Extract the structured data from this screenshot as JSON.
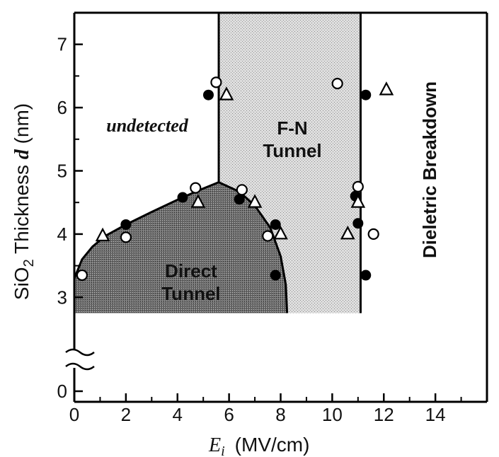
{
  "chart_data": {
    "type": "scatter",
    "title": "",
    "xlabel": "(MV/cm)",
    "xlabel_symbol": "E",
    "xlabel_subscript": "i",
    "ylabel_prefix": "SiO",
    "ylabel_subscript": "2",
    "ylabel_mid": " Thickness ",
    "ylabel_symbol": "d",
    "ylabel_suffix": " (nm)",
    "xlim": [
      0,
      16
    ],
    "ylim_display": [
      2.5,
      7.5
    ],
    "y_axis_break": true,
    "x_ticks": [
      "0",
      "2",
      "4",
      "6",
      "8",
      "10",
      "12",
      "14"
    ],
    "x_tick_values": [
      0,
      2,
      4,
      6,
      8,
      10,
      12,
      14
    ],
    "y_ticks": [
      "0",
      "3",
      "4",
      "5",
      "6",
      "7"
    ],
    "y_tick_values": [
      0,
      3,
      4,
      5,
      6,
      7
    ],
    "grid": false,
    "regions": [
      {
        "label": "undetected",
        "style": "italic"
      },
      {
        "label_lines": [
          "Direct",
          "Tunnel"
        ],
        "fill": "dark-stipple"
      },
      {
        "label_lines": [
          "F-N",
          "Tunnel"
        ],
        "fill": "light-stipple"
      },
      {
        "label": "Dieletric Breakdown",
        "rotated": true
      }
    ],
    "boundaries": {
      "fn_left_x": 5.6,
      "fn_right_x": 11.1,
      "fn_top_y": 7.5,
      "region_bottom_y": 2.75,
      "direct_tunnel_curve": [
        [
          0.0,
          3.3
        ],
        [
          0.3,
          3.6
        ],
        [
          0.7,
          3.8
        ],
        [
          1.2,
          3.97
        ],
        [
          2.0,
          4.15
        ],
        [
          3.0,
          4.35
        ],
        [
          4.2,
          4.58
        ],
        [
          5.0,
          4.72
        ],
        [
          5.6,
          4.82
        ],
        [
          6.4,
          4.67
        ],
        [
          7.0,
          4.45
        ],
        [
          7.6,
          4.1
        ],
        [
          8.0,
          3.65
        ],
        [
          8.2,
          3.2
        ],
        [
          8.25,
          2.75
        ]
      ]
    },
    "series": [
      {
        "marker": "filled-circle",
        "points": [
          [
            2.0,
            4.15
          ],
          [
            4.2,
            4.58
          ],
          [
            5.2,
            6.2
          ],
          [
            6.4,
            4.55
          ],
          [
            7.8,
            4.15
          ],
          [
            7.8,
            3.35
          ],
          [
            10.9,
            4.6
          ],
          [
            11.0,
            4.17
          ],
          [
            11.3,
            6.2
          ],
          [
            11.3,
            3.35
          ]
        ]
      },
      {
        "marker": "open-circle",
        "points": [
          [
            0.3,
            3.35
          ],
          [
            2.0,
            3.95
          ],
          [
            4.7,
            4.73
          ],
          [
            5.5,
            6.4
          ],
          [
            6.5,
            4.7
          ],
          [
            7.5,
            3.97
          ],
          [
            10.2,
            6.38
          ],
          [
            11.0,
            4.75
          ],
          [
            11.6,
            4.0
          ]
        ]
      },
      {
        "marker": "open-triangle",
        "points": [
          [
            1.1,
            3.97
          ],
          [
            4.8,
            4.5
          ],
          [
            5.9,
            6.2
          ],
          [
            7.0,
            4.5
          ],
          [
            8.0,
            4.0
          ],
          [
            10.6,
            4.0
          ],
          [
            11.0,
            4.5
          ],
          [
            12.1,
            6.28
          ]
        ]
      }
    ]
  }
}
